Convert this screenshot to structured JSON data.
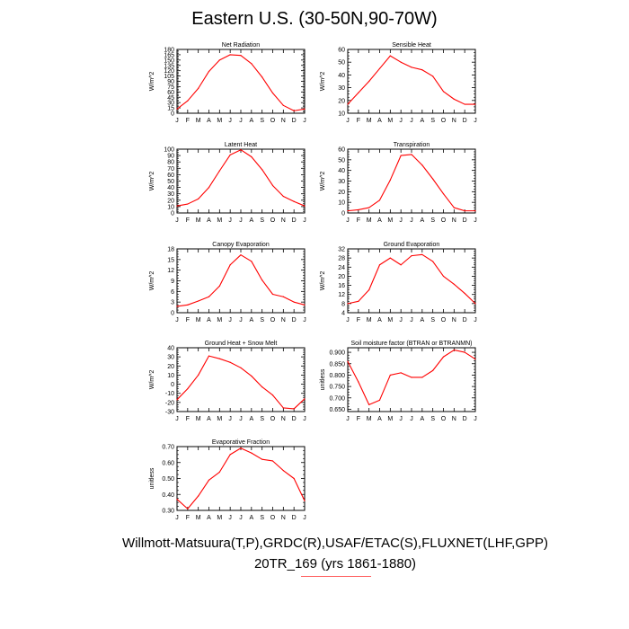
{
  "title": "Eastern U.S. (30-50N,90-70W)",
  "footer": {
    "line1": "Willmott-Matsuura(T,P),GRDC(R),USAF/ETAC(S),FLUXNET(LHF,GPP)",
    "line2": "20TR_169 (yrs 1861-1880)"
  },
  "colors": {
    "series": "#ff0000",
    "underline": "#ff6060",
    "axis": "#000000"
  },
  "chart_data": [
    {
      "type": "line",
      "title": "Net Radiation",
      "ylabel": "W/m^2",
      "categories": [
        "J",
        "F",
        "M",
        "A",
        "M",
        "J",
        "J",
        "A",
        "S",
        "O",
        "N",
        "D",
        "J"
      ],
      "ylim": [
        0,
        180
      ],
      "yticks": [
        0,
        15,
        30,
        45,
        60,
        75,
        90,
        105,
        120,
        135,
        150,
        165,
        180
      ],
      "ytick_labels": [
        "0",
        "15",
        "30",
        "45",
        "60",
        "75",
        "90",
        "105",
        "120",
        "135",
        "150",
        "165",
        "180"
      ],
      "values": [
        12,
        35,
        70,
        118,
        150,
        165,
        163,
        140,
        102,
        57,
        22,
        7,
        12
      ]
    },
    {
      "type": "line",
      "title": "Sensible Heat",
      "ylabel": "W/m^2",
      "categories": [
        "J",
        "F",
        "M",
        "A",
        "M",
        "J",
        "J",
        "A",
        "S",
        "O",
        "N",
        "D",
        "J"
      ],
      "ylim": [
        10,
        60
      ],
      "yticks": [
        10,
        20,
        30,
        40,
        50,
        60
      ],
      "ytick_labels": [
        "10",
        "20",
        "30",
        "40",
        "50",
        "60"
      ],
      "values": [
        17,
        26,
        35,
        45,
        55,
        50,
        46,
        44,
        39,
        27,
        21,
        17,
        17
      ]
    },
    {
      "type": "line",
      "title": "Latent Heat",
      "ylabel": "W/m^2",
      "categories": [
        "J",
        "F",
        "M",
        "A",
        "M",
        "J",
        "J",
        "A",
        "S",
        "O",
        "N",
        "D",
        "J"
      ],
      "ylim": [
        0,
        100
      ],
      "yticks": [
        0,
        10,
        20,
        30,
        40,
        50,
        60,
        70,
        80,
        90,
        100
      ],
      "ytick_labels": [
        "0",
        "10",
        "20",
        "30",
        "40",
        "50",
        "60",
        "70",
        "80",
        "90",
        "100"
      ],
      "values": [
        11,
        14,
        22,
        40,
        66,
        91,
        99,
        88,
        68,
        43,
        26,
        18,
        11
      ]
    },
    {
      "type": "line",
      "title": "Transpiration",
      "ylabel": "W/m^2",
      "categories": [
        "J",
        "F",
        "M",
        "A",
        "M",
        "J",
        "J",
        "A",
        "S",
        "O",
        "N",
        "D",
        "J"
      ],
      "ylim": [
        0,
        60
      ],
      "yticks": [
        0,
        10,
        20,
        30,
        40,
        50,
        60
      ],
      "ytick_labels": [
        "0",
        "10",
        "20",
        "30",
        "40",
        "50",
        "60"
      ],
      "values": [
        2,
        3,
        5,
        12,
        31,
        54,
        55,
        45,
        32,
        18,
        5,
        2,
        2
      ]
    },
    {
      "type": "line",
      "title": "Canopy Evaporation",
      "ylabel": "W/m^2",
      "categories": [
        "J",
        "F",
        "M",
        "A",
        "M",
        "J",
        "J",
        "A",
        "S",
        "O",
        "N",
        "D",
        "J"
      ],
      "ylim": [
        0,
        18
      ],
      "yticks": [
        0,
        3,
        6,
        9,
        12,
        15,
        18
      ],
      "ytick_labels": [
        "0",
        "3",
        "6",
        "9",
        "12",
        "15",
        "18"
      ],
      "values": [
        1.8,
        2.2,
        3.3,
        4.5,
        7.5,
        13.5,
        16.3,
        14.5,
        9.2,
        5.2,
        4.5,
        3.0,
        2.2
      ]
    },
    {
      "type": "line",
      "title": "Ground Evaporation",
      "ylabel": "W/m^2",
      "categories": [
        "J",
        "F",
        "M",
        "A",
        "M",
        "J",
        "J",
        "A",
        "S",
        "O",
        "N",
        "D",
        "J"
      ],
      "ylim": [
        4,
        32
      ],
      "yticks": [
        4,
        8,
        12,
        16,
        20,
        24,
        28,
        32
      ],
      "ytick_labels": [
        "4",
        "8",
        "12",
        "16",
        "20",
        "24",
        "28",
        "32"
      ],
      "values": [
        8,
        9,
        14,
        25,
        28,
        25,
        29,
        29.5,
        26.5,
        20,
        16.5,
        12.5,
        8
      ]
    },
    {
      "type": "line",
      "title": "Ground Heat + Snow Melt",
      "ylabel": "W/m^2",
      "categories": [
        "J",
        "F",
        "M",
        "A",
        "M",
        "J",
        "J",
        "A",
        "S",
        "O",
        "N",
        "D",
        "J"
      ],
      "ylim": [
        -30,
        40
      ],
      "yticks": [
        -30,
        -20,
        -10,
        0,
        10,
        20,
        30,
        40
      ],
      "ytick_labels": [
        "-30",
        "-20",
        "-10",
        "0",
        "10",
        "20",
        "30",
        "40"
      ],
      "values": [
        -17,
        -5,
        10,
        31,
        28,
        24,
        18,
        9,
        -3,
        -12,
        -26,
        -27,
        -16
      ]
    },
    {
      "type": "line",
      "title": "Soil moisture factor (BTRAN or BTRANMN)",
      "ylabel": "unitless",
      "categories": [
        "J",
        "F",
        "M",
        "A",
        "M",
        "J",
        "J",
        "A",
        "S",
        "O",
        "N",
        "D",
        "J"
      ],
      "ylim": [
        0.64,
        0.92
      ],
      "yticks": [
        0.65,
        0.7,
        0.75,
        0.8,
        0.85,
        0.9
      ],
      "ytick_labels": [
        "0.650",
        "0.700",
        "0.750",
        "0.800",
        "0.850",
        "0.900"
      ],
      "values": [
        0.86,
        0.77,
        0.67,
        0.69,
        0.8,
        0.81,
        0.79,
        0.79,
        0.82,
        0.88,
        0.91,
        0.9,
        0.87
      ]
    },
    {
      "type": "line",
      "title": "Evaporative Fraction",
      "ylabel": "unitless",
      "categories": [
        "J",
        "F",
        "M",
        "A",
        "M",
        "J",
        "J",
        "A",
        "S",
        "O",
        "N",
        "D",
        "J"
      ],
      "ylim": [
        0.3,
        0.7
      ],
      "yticks": [
        0.3,
        0.4,
        0.5,
        0.6,
        0.7
      ],
      "ytick_labels": [
        "0.30",
        "0.40",
        "0.50",
        "0.60",
        "0.70"
      ],
      "values": [
        0.37,
        0.31,
        0.39,
        0.49,
        0.54,
        0.65,
        0.69,
        0.66,
        0.62,
        0.61,
        0.55,
        0.5,
        0.36
      ]
    }
  ]
}
